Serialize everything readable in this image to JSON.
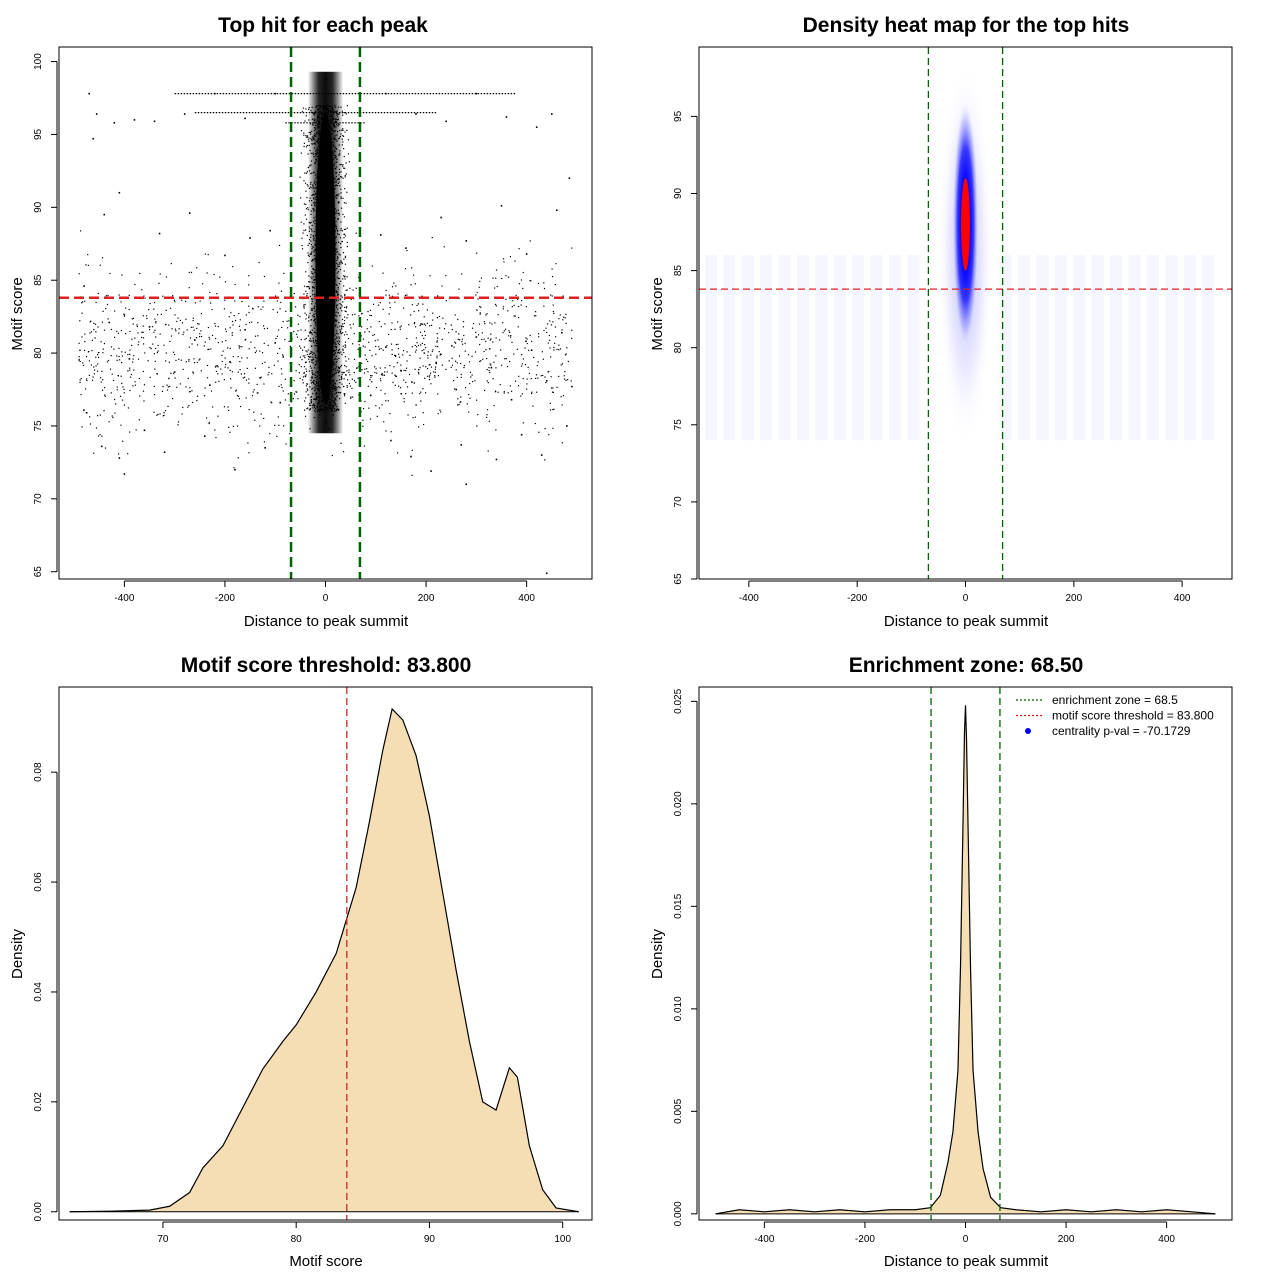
{
  "chart_data": [
    {
      "type": "scatter",
      "title": "Top hit for each peak",
      "xlabel": "Distance to peak summit",
      "ylabel": "Motif score",
      "xlim": [
        -530,
        530
      ],
      "ylim": [
        64.5,
        101
      ],
      "xticks": [
        -400,
        -200,
        0,
        200,
        400
      ],
      "yticks": [
        65,
        70,
        75,
        80,
        85,
        90,
        95,
        100
      ],
      "hlines": [
        {
          "y": 83.8,
          "color": "#e02020",
          "style": "dashed"
        }
      ],
      "vlines": [
        {
          "x": -68.5,
          "color": "#006400",
          "style": "dashed"
        },
        {
          "x": 68.5,
          "color": "#006400",
          "style": "dashed"
        }
      ],
      "point_color": "#000000",
      "points": [
        [
          -470,
          97.8
        ],
        [
          -455,
          96.4
        ],
        [
          -420,
          95.8
        ],
        [
          -380,
          96.0
        ],
        [
          -340,
          95.9
        ],
        [
          -280,
          96.4
        ],
        [
          -220,
          97.8
        ],
        [
          -160,
          96.1
        ],
        [
          -100,
          97.8
        ],
        [
          120,
          97.8
        ],
        [
          180,
          96.4
        ],
        [
          240,
          95.9
        ],
        [
          300,
          97.8
        ],
        [
          360,
          96.2
        ],
        [
          420,
          95.5
        ],
        [
          450,
          96.4
        ],
        [
          -462,
          94.7
        ],
        [
          -440,
          89.5
        ],
        [
          -410,
          91.0
        ],
        [
          -330,
          88.2
        ],
        [
          -270,
          89.6
        ],
        [
          -200,
          86.7
        ],
        [
          -150,
          87.9
        ],
        [
          -110,
          88.4
        ],
        [
          110,
          88.1
        ],
        [
          160,
          87.2
        ],
        [
          230,
          89.3
        ],
        [
          280,
          87.7
        ],
        [
          350,
          90.1
        ],
        [
          400,
          86.8
        ],
        [
          460,
          89.8
        ],
        [
          485,
          92.0
        ],
        [
          -480,
          84.6
        ],
        [
          -430,
          82.1
        ],
        [
          -390,
          79.6
        ],
        [
          -350,
          81.8
        ],
        [
          -300,
          78.7
        ],
        [
          -260,
          80.9
        ],
        [
          -230,
          77.8
        ],
        [
          -190,
          79.4
        ],
        [
          -160,
          81.6
        ],
        [
          -130,
          78.3
        ],
        [
          -100,
          80.7
        ],
        [
          -90,
          76.6
        ],
        [
          90,
          77.1
        ],
        [
          120,
          80.4
        ],
        [
          150,
          78.8
        ],
        [
          190,
          82.0
        ],
        [
          220,
          79.3
        ],
        [
          260,
          77.5
        ],
        [
          300,
          81.1
        ],
        [
          330,
          79.0
        ],
        [
          370,
          76.8
        ],
        [
          410,
          80.2
        ],
        [
          440,
          78.1
        ],
        [
          470,
          81.4
        ],
        [
          490,
          77.7
        ],
        [
          -475,
          75.9
        ],
        [
          -445,
          73.6
        ],
        [
          -410,
          72.8
        ],
        [
          -360,
          74.7
        ],
        [
          -320,
          73.2
        ],
        [
          -240,
          74.3
        ],
        [
          -180,
          72.0
        ],
        [
          -120,
          73.5
        ],
        [
          130,
          74.0
        ],
        [
          170,
          72.9
        ],
        [
          210,
          71.9
        ],
        [
          270,
          73.7
        ],
        [
          340,
          72.7
        ],
        [
          390,
          74.4
        ],
        [
          430,
          73.0
        ],
        [
          480,
          75.0
        ],
        [
          -400,
          71.7
        ],
        [
          280,
          71.0
        ],
        [
          440,
          64.9
        ],
        [
          -10,
          92.5
        ],
        [
          5,
          90.8
        ],
        [
          -6,
          88.9
        ],
        [
          8,
          87.6
        ],
        [
          -3,
          85.9
        ],
        [
          12,
          84.2
        ],
        [
          -15,
          82.6
        ],
        [
          2,
          80.9
        ],
        [
          -20,
          79.2
        ],
        [
          18,
          77.6
        ],
        [
          -8,
          76.1
        ],
        [
          6,
          94.9
        ],
        [
          -2,
          96.9
        ],
        [
          1,
          98.8
        ],
        [
          -25,
          86.4
        ],
        [
          25,
          89.2
        ],
        [
          -30,
          81.4
        ],
        [
          30,
          83.1
        ],
        [
          -40,
          78.4
        ],
        [
          38,
          77.2
        ]
      ],
      "density_core": {
        "x_center": 0,
        "x_halfwidth": 22,
        "y_from": 74.5,
        "y_to": 99.3
      },
      "horizontal_streaks": [
        {
          "y": 96.5,
          "x_from": -260,
          "x_to": 220
        },
        {
          "y": 95.8,
          "x_from": -80,
          "x_to": 80
        },
        {
          "y": 97.8,
          "x_from": -300,
          "x_to": 380
        }
      ]
    },
    {
      "type": "heatmap",
      "title": "Density heat map for the top hits",
      "xlabel": "Distance to peak summit",
      "ylabel": "Motif score",
      "xlim": [
        -492,
        492
      ],
      "ylim": [
        65,
        99.5
      ],
      "xticks": [
        -400,
        -200,
        0,
        200,
        400
      ],
      "yticks": [
        65,
        70,
        75,
        80,
        85,
        90,
        95
      ],
      "colors": {
        "low": "#ffffff",
        "mid": "#0000ff",
        "high": "#ff0000"
      },
      "hotspot": {
        "x": 0,
        "y": 88,
        "peak_color": "#ff0000"
      },
      "hlines": [
        {
          "y": 83.8,
          "color": "#e02020",
          "style": "dashed"
        }
      ],
      "vlines": [
        {
          "x": -68.5,
          "color": "#006400",
          "style": "dashed"
        },
        {
          "x": 68.5,
          "color": "#006400",
          "style": "dashed"
        }
      ]
    },
    {
      "type": "area",
      "title": "Motif score threshold: 83.800",
      "xlabel": "Motif score",
      "ylabel": "Density",
      "xlim": [
        62.2,
        102.2
      ],
      "ylim": [
        -0.0015,
        0.0955
      ],
      "xticks": [
        70,
        80,
        90,
        100
      ],
      "yticks": [
        0.0,
        0.02,
        0.04,
        0.06,
        0.08
      ],
      "ytick_labels": [
        "0.00",
        "0.02",
        "0.04",
        "0.06",
        "0.08"
      ],
      "fill": "#f5deb3",
      "vlines": [
        {
          "x": 83.8,
          "color": "#c62828",
          "style": "dashed"
        }
      ],
      "x": [
        63.0,
        66.0,
        69.0,
        70.5,
        72.0,
        73.0,
        74.5,
        76.0,
        77.5,
        79.0,
        80.0,
        81.5,
        83.0,
        84.5,
        85.5,
        86.5,
        87.2,
        88.0,
        89.0,
        90.0,
        91.0,
        92.0,
        93.0,
        94.0,
        95.0,
        96.0,
        96.6,
        97.5,
        98.5,
        99.5,
        101.2
      ],
      "y": [
        0.0,
        0.0001,
        0.0003,
        0.001,
        0.0035,
        0.008,
        0.012,
        0.019,
        0.026,
        0.031,
        0.034,
        0.04,
        0.047,
        0.059,
        0.071,
        0.084,
        0.0915,
        0.0895,
        0.083,
        0.072,
        0.058,
        0.044,
        0.031,
        0.02,
        0.0185,
        0.0262,
        0.0245,
        0.012,
        0.004,
        0.0007,
        0.0
      ]
    },
    {
      "type": "area",
      "title": "Enrichment zone: 68.50",
      "xlabel": "Distance to peak summit",
      "ylabel": "Density",
      "xlim": [
        -530,
        530
      ],
      "ylim": [
        -0.0003,
        0.0257
      ],
      "xticks": [
        -400,
        -200,
        0,
        200,
        400
      ],
      "yticks": [
        0.0,
        0.005,
        0.01,
        0.015,
        0.02,
        0.025
      ],
      "ytick_labels": [
        "0.000",
        "0.005",
        "0.010",
        "0.015",
        "0.020",
        "0.025"
      ],
      "fill": "#f5deb3",
      "vlines": [
        {
          "x": -68.5,
          "color": "#006400",
          "style": "dashed"
        },
        {
          "x": 68.5,
          "color": "#006400",
          "style": "dashed"
        }
      ],
      "x": [
        -497,
        -450,
        -400,
        -350,
        -300,
        -250,
        -200,
        -150,
        -100,
        -70,
        -50,
        -35,
        -25,
        -15,
        -10,
        -5,
        -2,
        0,
        2,
        5,
        10,
        15,
        25,
        35,
        50,
        70,
        100,
        150,
        200,
        250,
        300,
        350,
        400,
        450,
        497
      ],
      "y": [
        0.0,
        0.0002,
        0.0001,
        0.0002,
        0.0001,
        0.0002,
        0.0001,
        0.0002,
        0.0002,
        0.0003,
        0.0009,
        0.0025,
        0.004,
        0.007,
        0.012,
        0.019,
        0.0235,
        0.0248,
        0.0232,
        0.019,
        0.012,
        0.007,
        0.004,
        0.0022,
        0.0008,
        0.0003,
        0.0002,
        0.0001,
        0.0002,
        0.0001,
        0.0002,
        0.0001,
        0.0002,
        0.0001,
        0.0
      ],
      "legend": {
        "position": "top-right",
        "entries": [
          {
            "label": "enrichment zone = 68.5",
            "color": "#006400",
            "marker": "dotted-line"
          },
          {
            "label": "motif score threshold = 83.800",
            "color": "#e02020",
            "marker": "dotted-line"
          },
          {
            "label": "centrality p-val = -70.1729",
            "color": "#0000ff",
            "marker": "point"
          }
        ]
      }
    }
  ]
}
